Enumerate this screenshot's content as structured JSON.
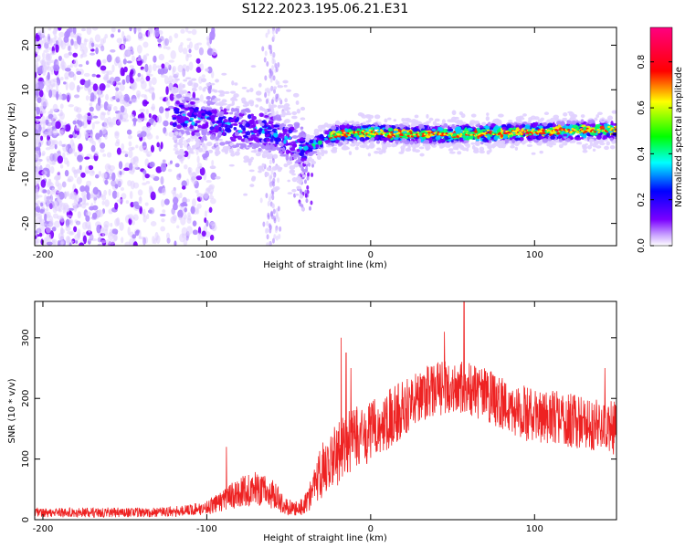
{
  "title": "S122.2023.195.06.21.E31",
  "chart_data": [
    {
      "type": "heatmap",
      "xlabel": "Height of straight line (km)",
      "ylabel": "Frequency (Hz)",
      "xlim": [
        -205,
        150
      ],
      "ylim": [
        -25,
        24
      ],
      "x_ticks": [
        -200,
        -100,
        0,
        100
      ],
      "y_ticks": [
        -20,
        -10,
        0,
        10,
        20
      ],
      "colorbar": {
        "label": "Normalized spectral amplitude",
        "range": [
          0,
          0.95
        ],
        "ticks": [
          0.0,
          0.2,
          0.4,
          0.6,
          0.8
        ],
        "colormap": [
          "#ffffff",
          "#c8a0ff",
          "#7a00ff",
          "#0000ff",
          "#00ffff",
          "#00ff00",
          "#ffff00",
          "#ff0000",
          "#ff00aa"
        ]
      },
      "ridge": {
        "x": [
          -205,
          -150,
          -110,
          -100,
          -90,
          -80,
          -70,
          -60,
          -50,
          -45,
          -40,
          -35,
          -30,
          -25,
          -20,
          -10,
          0,
          20,
          50,
          80,
          100,
          120,
          150
        ],
        "freq": [
          5,
          5,
          4,
          3,
          2,
          1.5,
          1,
          0.5,
          -1.5,
          -2.5,
          -3.5,
          -2.5,
          -1.5,
          -0.5,
          0,
          0.3,
          0.3,
          0,
          0,
          0.3,
          0.6,
          0.8,
          1
        ]
      }
    },
    {
      "type": "line",
      "xlabel": "Height of straight line (km)",
      "ylabel": "SNR (10 * v/v)",
      "xlim": [
        -205,
        150
      ],
      "ylim": [
        0,
        360
      ],
      "x_ticks": [
        -200,
        -100,
        0,
        100
      ],
      "y_ticks": [
        0,
        100,
        200,
        300
      ],
      "color": "#ee2222",
      "envelope": {
        "x": [
          -205,
          -180,
          -150,
          -130,
          -120,
          -110,
          -100,
          -90,
          -80,
          -70,
          -60,
          -50,
          -45,
          -40,
          -35,
          -30,
          -25,
          -20,
          -15,
          -10,
          0,
          10,
          20,
          30,
          40,
          50,
          60,
          70,
          80,
          90,
          100,
          110,
          120,
          130,
          140,
          150
        ],
        "mean": [
          12,
          12,
          12,
          12,
          14,
          16,
          20,
          32,
          45,
          52,
          42,
          20,
          18,
          25,
          50,
          80,
          100,
          110,
          125,
          130,
          145,
          165,
          185,
          205,
          215,
          220,
          215,
          205,
          190,
          180,
          170,
          170,
          165,
          160,
          155,
          150
        ],
        "spread": [
          8,
          8,
          8,
          8,
          9,
          10,
          12,
          18,
          25,
          28,
          24,
          14,
          12,
          18,
          30,
          45,
          55,
          55,
          55,
          55,
          50,
          50,
          48,
          45,
          45,
          45,
          45,
          45,
          45,
          45,
          45,
          45,
          45,
          45,
          45,
          45
        ]
      },
      "peaks": [
        {
          "x": -88,
          "y": 120
        },
        {
          "x": -18,
          "y": 300
        },
        {
          "x": -15,
          "y": 275
        },
        {
          "x": -12,
          "y": 250
        },
        {
          "x": 57,
          "y": 360
        },
        {
          "x": 45,
          "y": 310
        },
        {
          "x": 143,
          "y": 250
        }
      ]
    }
  ]
}
